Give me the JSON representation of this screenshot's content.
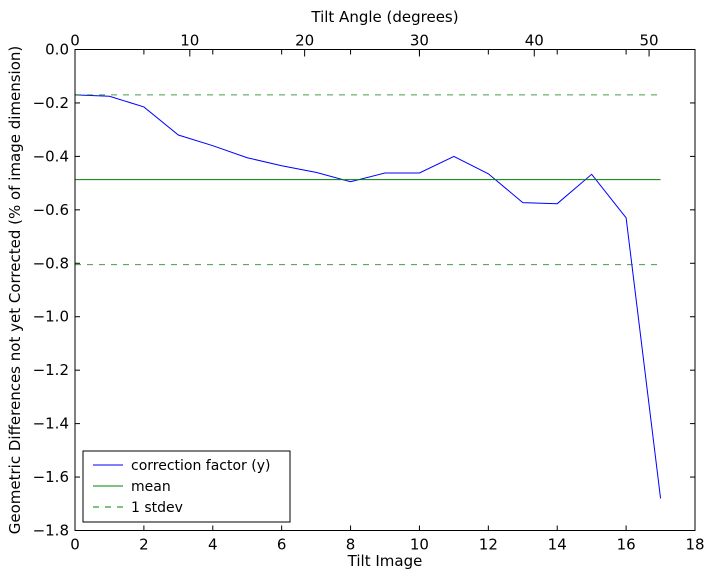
{
  "chart_data": {
    "type": "line",
    "title": "",
    "xlabel": "Tilt Image",
    "xlabel_top": "Tilt Angle (degrees)",
    "ylabel": "Geometric Differences not yet Corrected (% of image dimension)",
    "xlim": [
      0,
      18
    ],
    "xlim_top": [
      0,
      54
    ],
    "ylim": [
      -1.8,
      0.0
    ],
    "x_ticks": [
      0,
      2,
      4,
      6,
      8,
      10,
      12,
      14,
      16,
      18
    ],
    "x_tick_labels": [
      "0",
      "2",
      "4",
      "6",
      "8",
      "10",
      "12",
      "14",
      "16",
      "18"
    ],
    "x_top_ticks": [
      0,
      10,
      20,
      30,
      40,
      50
    ],
    "x_top_tick_labels": [
      "0",
      "10",
      "20",
      "30",
      "40",
      "50"
    ],
    "y_ticks": [
      0.0,
      -0.2,
      -0.4,
      -0.6,
      -0.8,
      -1.0,
      -1.2,
      -1.4,
      -1.6,
      -1.8
    ],
    "y_tick_labels": [
      "0.0",
      "−0.2",
      "−0.4",
      "−0.6",
      "−0.8",
      "−1.0",
      "−1.2",
      "−1.4",
      "−1.6",
      "−1.8"
    ],
    "grid": false,
    "legend_position": "lower-left",
    "series": [
      {
        "name": "correction factor (y)",
        "color": "#0000ff",
        "style": "solid",
        "x": [
          0,
          1,
          2,
          3,
          4,
          5,
          6,
          7,
          8,
          9,
          10,
          11,
          12,
          13,
          14,
          15,
          16,
          17
        ],
        "y": [
          -0.17,
          -0.175,
          -0.215,
          -0.32,
          -0.36,
          -0.405,
          -0.435,
          -0.46,
          -0.495,
          -0.462,
          -0.462,
          -0.4,
          -0.465,
          -0.573,
          -0.577,
          -0.467,
          -0.63,
          -1.68
        ]
      },
      {
        "name": "mean",
        "color": "#008000",
        "style": "solid",
        "x": [
          0,
          17
        ],
        "y": [
          -0.487,
          -0.487
        ]
      },
      {
        "name": "1 stdev",
        "color": "#008000",
        "style": "dashed",
        "x": [
          0,
          17
        ],
        "y": [
          -0.17,
          -0.17
        ]
      },
      {
        "name": "",
        "color": "#008000",
        "style": "dashed",
        "x": [
          0,
          17
        ],
        "y": [
          -0.805,
          -0.805
        ]
      }
    ]
  }
}
